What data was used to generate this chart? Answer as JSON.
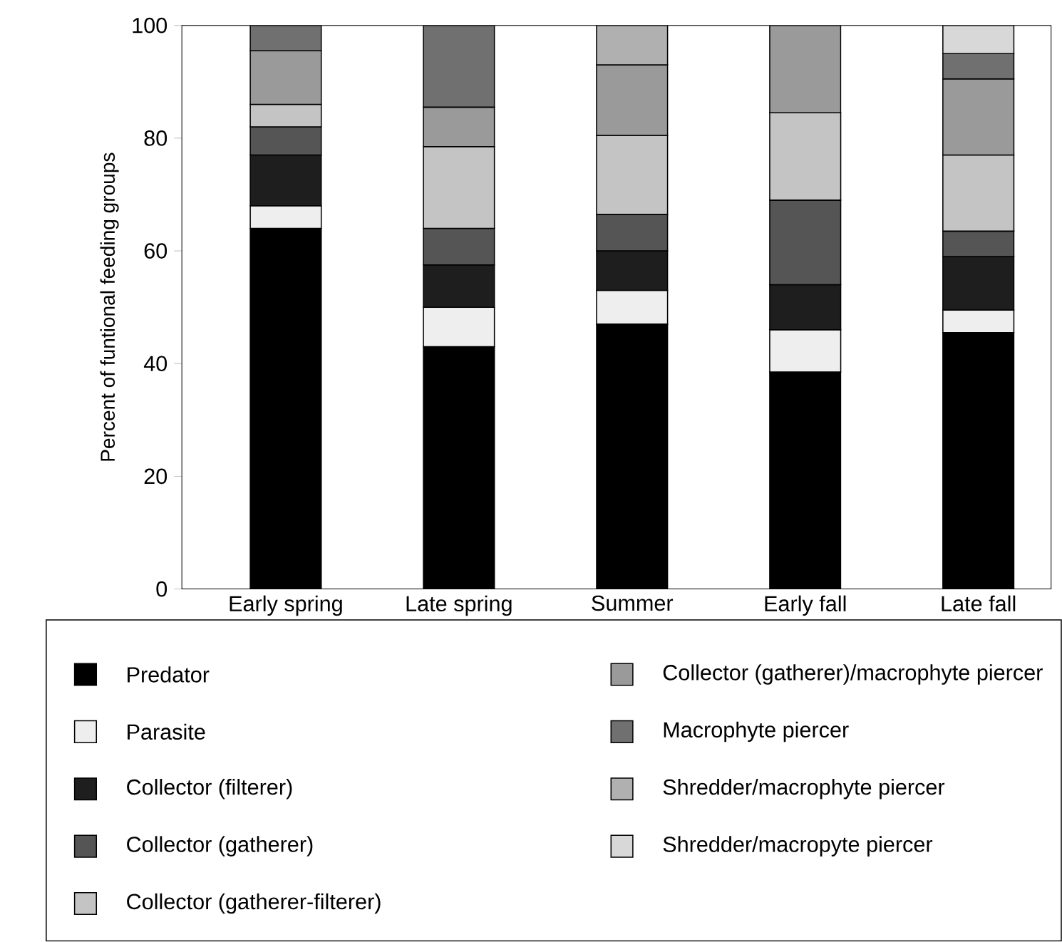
{
  "chart_data": {
    "type": "bar",
    "stacked": true,
    "ylabel": "Percent of funtional feeding groups",
    "categories": [
      "Early spring",
      "Late spring",
      "Summer",
      "Early fall",
      "Late fall"
    ],
    "ylim": [
      0,
      100
    ],
    "yticks": [
      0,
      20,
      40,
      60,
      80,
      100
    ],
    "grid": false,
    "legend": "bottom",
    "series": [
      {
        "name": "Predator",
        "color": "#000000",
        "values": [
          64,
          43,
          47,
          38.5,
          45.5
        ]
      },
      {
        "name": "Parasite",
        "color": "#eeeeee",
        "values": [
          4,
          7,
          6,
          7.5,
          4
        ]
      },
      {
        "name": "Collector (filterer)",
        "color": "#1e1e1e",
        "values": [
          9,
          7.5,
          7,
          8,
          9.5
        ]
      },
      {
        "name": "Collector (gatherer)",
        "color": "#555555",
        "values": [
          5,
          6.5,
          6.5,
          15,
          4.5
        ]
      },
      {
        "name": "Collector (gatherer-filterer)",
        "color": "#c4c4c4",
        "values": [
          4,
          14.5,
          14,
          15.5,
          13.5
        ]
      },
      {
        "name": "Collector (gatherer)/macrophyte piercer",
        "color": "#9a9a9a",
        "values": [
          9.5,
          7,
          12.5,
          15.5,
          13.5
        ]
      },
      {
        "name": "Macrophyte piercer",
        "color": "#707070",
        "values": [
          4.5,
          14.5,
          null,
          null,
          4.5
        ]
      },
      {
        "name": "Shredder/macrophyte piercer",
        "color": "#b0b0b0",
        "values": [
          null,
          null,
          7,
          null,
          null
        ]
      },
      {
        "name": "Shredder/macropyte piercer",
        "color": "#d8d8d8",
        "values": [
          null,
          null,
          null,
          null,
          5
        ]
      }
    ]
  }
}
